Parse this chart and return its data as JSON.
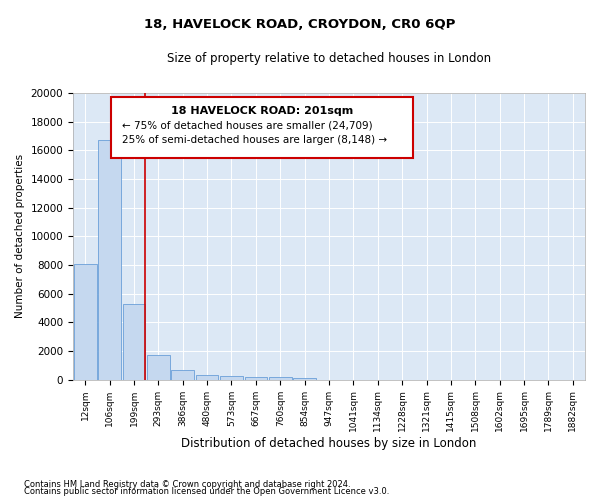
{
  "title1": "18, HAVELOCK ROAD, CROYDON, CR0 6QP",
  "title2": "Size of property relative to detached houses in London",
  "xlabel": "Distribution of detached houses by size in London",
  "ylabel": "Number of detached properties",
  "bar_color": "#c5d8ef",
  "bar_edge_color": "#6a9fd8",
  "background_color": "#dce8f5",
  "grid_color": "white",
  "categories": [
    "12sqm",
    "106sqm",
    "199sqm",
    "293sqm",
    "386sqm",
    "480sqm",
    "573sqm",
    "667sqm",
    "760sqm",
    "854sqm",
    "947sqm",
    "1041sqm",
    "1134sqm",
    "1228sqm",
    "1321sqm",
    "1415sqm",
    "1508sqm",
    "1602sqm",
    "1695sqm",
    "1789sqm",
    "1882sqm"
  ],
  "values": [
    8100,
    16700,
    5300,
    1750,
    700,
    350,
    270,
    180,
    170,
    120,
    0,
    0,
    0,
    0,
    0,
    0,
    0,
    0,
    0,
    0,
    0
  ],
  "ylim": [
    0,
    20000
  ],
  "yticks": [
    0,
    2000,
    4000,
    6000,
    8000,
    10000,
    12000,
    14000,
    16000,
    18000,
    20000
  ],
  "property_label": "18 HAVELOCK ROAD: 201sqm",
  "annotation_line1": "← 75% of detached houses are smaller (24,709)",
  "annotation_line2": "25% of semi-detached houses are larger (8,148) →",
  "red_line_x": 2.5,
  "red_line_color": "#cc0000",
  "annotation_box_color": "#cc0000",
  "footnote1": "Contains HM Land Registry data © Crown copyright and database right 2024.",
  "footnote2": "Contains public sector information licensed under the Open Government Licence v3.0."
}
